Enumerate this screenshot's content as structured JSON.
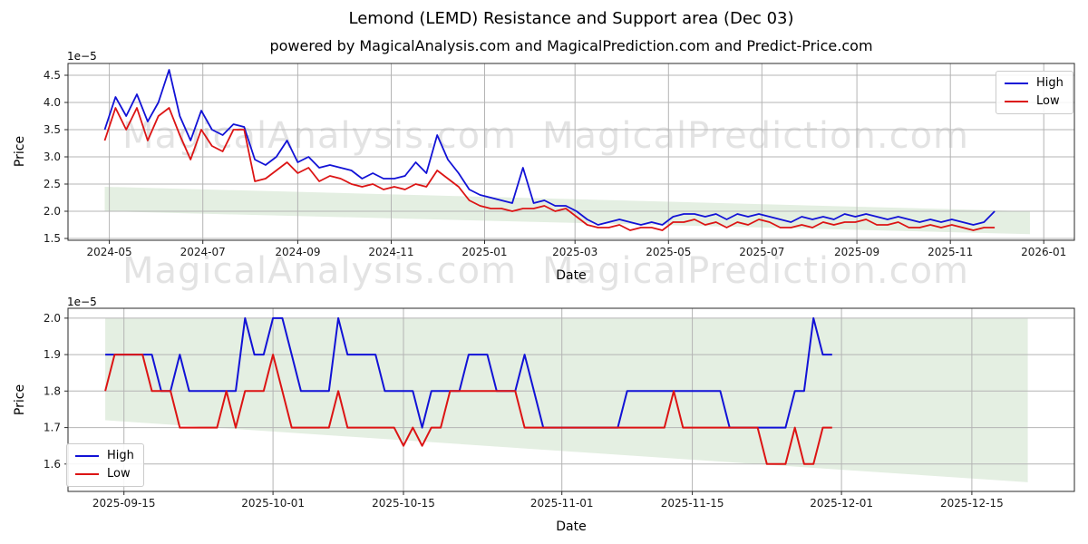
{
  "figure": {
    "title": "Lemond (LEMD) Resistance and Support area (Dec 03)",
    "subtitle": "powered by MagicalAnalysis.com and MagicalPrediction.com and Predict-Price.com",
    "background": "#ffffff"
  },
  "watermarks": {
    "analysis": "MagicalAnalysis.com",
    "prediction": "MagicalPrediction.com"
  },
  "legend": {
    "high": "High",
    "low": "Low"
  },
  "colors": {
    "high": "#1212d6",
    "low": "#dc1414",
    "support": "#e4efe2",
    "grid": "#b4b4b4",
    "spine": "#2a2a2a",
    "tick_text": "#1a1a1a"
  },
  "chart_data": [
    {
      "type": "line",
      "name": "full-history",
      "ylabel": "Price",
      "xlabel": "Date",
      "offset_label": "1e−5",
      "y_unit": "1e-5",
      "grid": true,
      "legend_position": "upper right",
      "x_range": [
        "2024-04-04",
        "2026-01-21"
      ],
      "y_range": [
        1.467,
        4.717
      ],
      "yticks": [
        {
          "v": 1.5,
          "label": "1.5"
        },
        {
          "v": 2.0,
          "label": "2.0"
        },
        {
          "v": 2.5,
          "label": "2.5"
        },
        {
          "v": 3.0,
          "label": "3.0"
        },
        {
          "v": 3.5,
          "label": "3.5"
        },
        {
          "v": 4.0,
          "label": "4.0"
        },
        {
          "v": 4.5,
          "label": "4.5"
        }
      ],
      "xticks": [
        {
          "d": "2024-05-01",
          "label": "2024-05"
        },
        {
          "d": "2024-07-01",
          "label": "2024-07"
        },
        {
          "d": "2024-09-01",
          "label": "2024-09"
        },
        {
          "d": "2024-11-01",
          "label": "2024-11"
        },
        {
          "d": "2025-01-01",
          "label": "2025-01"
        },
        {
          "d": "2025-03-01",
          "label": "2025-03"
        },
        {
          "d": "2025-05-01",
          "label": "2025-05"
        },
        {
          "d": "2025-07-01",
          "label": "2025-07"
        },
        {
          "d": "2025-09-01",
          "label": "2025-09"
        },
        {
          "d": "2025-11-01",
          "label": "2025-11"
        },
        {
          "d": "2026-01-01",
          "label": "2026-01"
        }
      ],
      "support_area": [
        [
          "2024-04-28",
          2.45
        ],
        [
          "2025-12-23",
          2.0
        ],
        [
          "2025-12-23",
          1.58
        ],
        [
          "2024-04-28",
          2.0
        ]
      ],
      "series": [
        {
          "name": "High",
          "color_key": "high",
          "start": "2024-04-28",
          "step_days": 7,
          "width": 1.8,
          "values": [
            3.5,
            4.1,
            3.75,
            4.15,
            3.65,
            4.0,
            4.6,
            3.75,
            3.3,
            3.85,
            3.5,
            3.4,
            3.6,
            3.55,
            2.95,
            2.85,
            3.0,
            3.3,
            2.9,
            3.0,
            2.8,
            2.85,
            2.8,
            2.75,
            2.6,
            2.7,
            2.6,
            2.6,
            2.65,
            2.9,
            2.7,
            3.4,
            2.95,
            2.7,
            2.4,
            2.3,
            2.25,
            2.2,
            2.15,
            2.8,
            2.15,
            2.2,
            2.1,
            2.1,
            2.0,
            1.85,
            1.75,
            1.8,
            1.85,
            1.8,
            1.75,
            1.8,
            1.75,
            1.9,
            1.95,
            1.95,
            1.9,
            1.95,
            1.85,
            1.95,
            1.9,
            1.95,
            1.9,
            1.85,
            1.8,
            1.9,
            1.85,
            1.9,
            1.85,
            1.95,
            1.9,
            1.95,
            1.9,
            1.85,
            1.9,
            1.85,
            1.8,
            1.85,
            1.8,
            1.85,
            1.8,
            1.75,
            1.8,
            2.0
          ]
        },
        {
          "name": "Low",
          "color_key": "low",
          "start": "2024-04-28",
          "step_days": 7,
          "width": 1.8,
          "values": [
            3.3,
            3.9,
            3.5,
            3.9,
            3.3,
            3.75,
            3.9,
            3.4,
            2.95,
            3.5,
            3.2,
            3.1,
            3.5,
            3.5,
            2.55,
            2.6,
            2.75,
            2.9,
            2.7,
            2.8,
            2.55,
            2.65,
            2.6,
            2.5,
            2.45,
            2.5,
            2.4,
            2.45,
            2.4,
            2.5,
            2.45,
            2.75,
            2.6,
            2.45,
            2.2,
            2.1,
            2.05,
            2.05,
            2.0,
            2.05,
            2.05,
            2.1,
            2.0,
            2.05,
            1.9,
            1.75,
            1.7,
            1.7,
            1.75,
            1.65,
            1.7,
            1.7,
            1.65,
            1.8,
            1.8,
            1.85,
            1.75,
            1.8,
            1.7,
            1.8,
            1.75,
            1.85,
            1.8,
            1.7,
            1.7,
            1.75,
            1.7,
            1.8,
            1.75,
            1.8,
            1.8,
            1.85,
            1.75,
            1.75,
            1.8,
            1.7,
            1.7,
            1.75,
            1.7,
            1.75,
            1.7,
            1.65,
            1.7,
            1.7
          ]
        }
      ]
    },
    {
      "type": "line",
      "name": "recent-zoom",
      "ylabel": "Price",
      "xlabel": "Date",
      "offset_label": "1e−5",
      "y_unit": "1e-5",
      "grid": true,
      "legend_position": "lower left",
      "x_range": [
        "2025-09-09",
        "2025-12-26"
      ],
      "y_range": [
        1.525,
        2.027
      ],
      "yticks": [
        {
          "v": 1.6,
          "label": "1.6"
        },
        {
          "v": 1.7,
          "label": "1.7"
        },
        {
          "v": 1.8,
          "label": "1.8"
        },
        {
          "v": 1.9,
          "label": "1.9"
        },
        {
          "v": 2.0,
          "label": "2.0"
        }
      ],
      "xticks": [
        {
          "d": "2025-09-15",
          "label": "2025-09-15"
        },
        {
          "d": "2025-10-01",
          "label": "2025-10-01"
        },
        {
          "d": "2025-10-15",
          "label": "2025-10-15"
        },
        {
          "d": "2025-11-01",
          "label": "2025-11-01"
        },
        {
          "d": "2025-11-15",
          "label": "2025-11-15"
        },
        {
          "d": "2025-12-01",
          "label": "2025-12-01"
        },
        {
          "d": "2025-12-15",
          "label": "2025-12-15"
        }
      ],
      "support_area": [
        [
          "2025-09-13",
          2.0
        ],
        [
          "2025-12-21",
          2.0
        ],
        [
          "2025-12-21",
          1.55
        ],
        [
          "2025-09-13",
          1.72
        ]
      ],
      "series": [
        {
          "name": "High",
          "color_key": "high",
          "start": "2025-09-13",
          "step_days": 1,
          "width": 2,
          "values": [
            1.9,
            1.9,
            1.9,
            1.9,
            1.9,
            1.9,
            1.8,
            1.8,
            1.9,
            1.8,
            1.8,
            1.8,
            1.8,
            1.8,
            1.8,
            2.0,
            1.9,
            1.9,
            2.0,
            2.0,
            1.9,
            1.8,
            1.8,
            1.8,
            1.8,
            2.0,
            1.9,
            1.9,
            1.9,
            1.9,
            1.8,
            1.8,
            1.8,
            1.8,
            1.7,
            1.8,
            1.8,
            1.8,
            1.8,
            1.9,
            1.9,
            1.9,
            1.8,
            1.8,
            1.8,
            1.9,
            1.8,
            1.7,
            1.7,
            1.7,
            1.7,
            1.7,
            1.7,
            1.7,
            1.7,
            1.7,
            1.8,
            1.8,
            1.8,
            1.8,
            1.8,
            1.8,
            1.8,
            1.8,
            1.8,
            1.8,
            1.8,
            1.7,
            1.7,
            1.7,
            1.7,
            1.7,
            1.7,
            1.7,
            1.8,
            1.8,
            2.0,
            1.9,
            1.9
          ]
        },
        {
          "name": "Low",
          "color_key": "low",
          "start": "2025-09-13",
          "step_days": 1,
          "width": 2,
          "values": [
            1.8,
            1.9,
            1.9,
            1.9,
            1.9,
            1.8,
            1.8,
            1.8,
            1.7,
            1.7,
            1.7,
            1.7,
            1.7,
            1.8,
            1.7,
            1.8,
            1.8,
            1.8,
            1.9,
            1.8,
            1.7,
            1.7,
            1.7,
            1.7,
            1.7,
            1.8,
            1.7,
            1.7,
            1.7,
            1.7,
            1.7,
            1.7,
            1.65,
            1.7,
            1.65,
            1.7,
            1.7,
            1.8,
            1.8,
            1.8,
            1.8,
            1.8,
            1.8,
            1.8,
            1.8,
            1.7,
            1.7,
            1.7,
            1.7,
            1.7,
            1.7,
            1.7,
            1.7,
            1.7,
            1.7,
            1.7,
            1.7,
            1.7,
            1.7,
            1.7,
            1.7,
            1.8,
            1.7,
            1.7,
            1.7,
            1.7,
            1.7,
            1.7,
            1.7,
            1.7,
            1.7,
            1.6,
            1.6,
            1.6,
            1.7,
            1.6,
            1.6,
            1.7,
            1.7
          ]
        }
      ]
    }
  ]
}
